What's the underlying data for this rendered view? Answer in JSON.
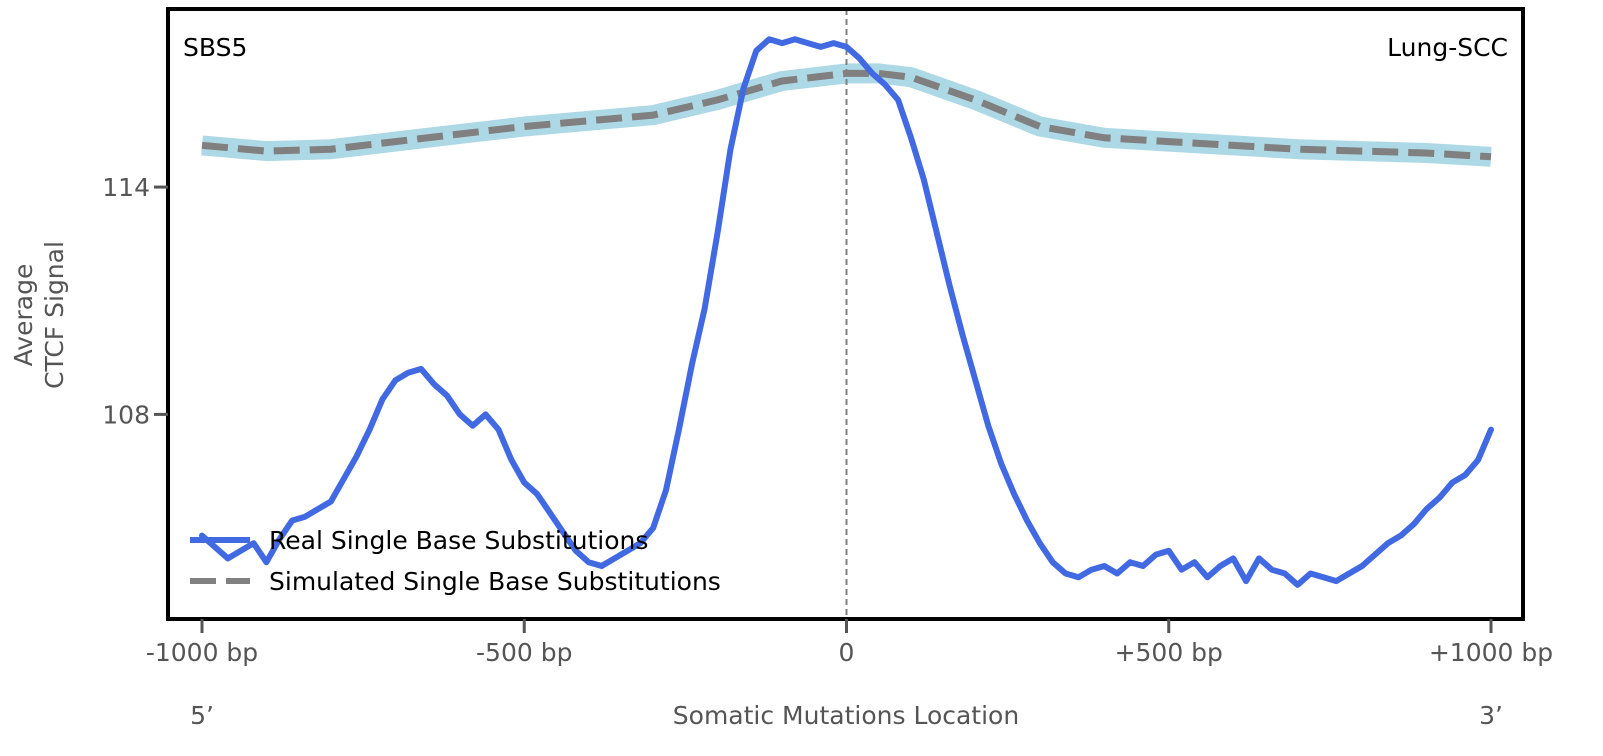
{
  "chart_data": {
    "type": "line",
    "title": "",
    "top_left_label": "SBS5",
    "top_right_label": "Lung-SCC",
    "xlabel": "Somatic Mutations Location",
    "ylabel_lines": [
      "Average",
      "CTCF Signal"
    ],
    "x_end_labels": {
      "left": "5’",
      "right": "3’"
    },
    "xlim": [
      -1000,
      1000
    ],
    "ylim": [
      102.6,
      118.7
    ],
    "x_ticks": [
      {
        "value": -1000,
        "label": "-1000 bp"
      },
      {
        "value": -500,
        "label": "-500 bp"
      },
      {
        "value": 0,
        "label": "0"
      },
      {
        "value": 500,
        "label": "+500 bp"
      },
      {
        "value": 1000,
        "label": "+1000 bp"
      }
    ],
    "y_ticks": [
      {
        "value": 108,
        "label": "108"
      },
      {
        "value": 114,
        "label": "114"
      }
    ],
    "vline_x": 0,
    "grid": false,
    "legend": {
      "position": "bottom-left",
      "entries": [
        {
          "label": "Real Single Base Substitutions",
          "color": "#4169e1",
          "style": "solid"
        },
        {
          "label": "Simulated Single Base Substitutions",
          "color": "#808080",
          "style": "dashed"
        }
      ]
    },
    "colors": {
      "real": "#4169e1",
      "simulated": "#808080",
      "band": "#add8e6",
      "vline": "#808080"
    },
    "series": [
      {
        "name": "Real Single Base Substitutions",
        "x": [
          -1000,
          -980,
          -960,
          -940,
          -920,
          -900,
          -880,
          -860,
          -840,
          -820,
          -800,
          -780,
          -760,
          -740,
          -720,
          -700,
          -680,
          -660,
          -640,
          -620,
          -600,
          -580,
          -560,
          -540,
          -520,
          -500,
          -480,
          -460,
          -440,
          -420,
          -400,
          -380,
          -360,
          -340,
          -320,
          -300,
          -280,
          -260,
          -240,
          -220,
          -200,
          -180,
          -160,
          -140,
          -120,
          -100,
          -80,
          -60,
          -40,
          -20,
          0,
          20,
          40,
          60,
          80,
          100,
          120,
          140,
          160,
          180,
          200,
          220,
          240,
          260,
          280,
          300,
          320,
          340,
          360,
          380,
          400,
          420,
          440,
          460,
          480,
          500,
          520,
          540,
          560,
          580,
          600,
          620,
          640,
          660,
          680,
          700,
          720,
          740,
          760,
          780,
          800,
          820,
          840,
          860,
          880,
          900,
          920,
          940,
          960,
          980,
          1000
        ],
        "y": [
          104.8,
          104.5,
          104.2,
          104.4,
          104.6,
          104.1,
          104.7,
          105.2,
          105.3,
          105.5,
          105.7,
          106.3,
          106.9,
          107.6,
          108.4,
          108.9,
          109.1,
          109.2,
          108.8,
          108.5,
          108.0,
          107.7,
          108.0,
          107.6,
          106.8,
          106.2,
          105.9,
          105.4,
          104.9,
          104.4,
          104.1,
          104.0,
          104.2,
          104.4,
          104.6,
          105.0,
          106.0,
          107.6,
          109.3,
          110.8,
          112.8,
          115.0,
          116.6,
          117.6,
          117.9,
          117.8,
          117.9,
          117.8,
          117.7,
          117.8,
          117.7,
          117.4,
          117.0,
          116.7,
          116.3,
          115.3,
          114.2,
          112.8,
          111.4,
          110.1,
          108.9,
          107.7,
          106.7,
          105.9,
          105.2,
          104.6,
          104.1,
          103.8,
          103.7,
          103.9,
          104.0,
          103.8,
          104.1,
          104.0,
          104.3,
          104.4,
          103.9,
          104.1,
          103.7,
          104.0,
          104.2,
          103.6,
          104.2,
          103.9,
          103.8,
          103.5,
          103.8,
          103.7,
          103.6,
          103.8,
          104.0,
          104.3,
          104.6,
          104.8,
          105.1,
          105.5,
          105.8,
          106.2,
          106.4,
          106.8,
          107.6
        ]
      },
      {
        "name": "Simulated Single Base Substitutions",
        "x": [
          -1000,
          -900,
          -800,
          -700,
          -600,
          -500,
          -400,
          -300,
          -200,
          -100,
          0,
          50,
          100,
          200,
          300,
          400,
          500,
          600,
          700,
          800,
          900,
          1000
        ],
        "y": [
          115.1,
          114.95,
          115.0,
          115.2,
          115.4,
          115.6,
          115.75,
          115.9,
          116.3,
          116.8,
          117.0,
          117.0,
          116.9,
          116.3,
          115.6,
          115.3,
          115.2,
          115.1,
          115.0,
          114.95,
          114.9,
          114.8
        ]
      }
    ]
  }
}
